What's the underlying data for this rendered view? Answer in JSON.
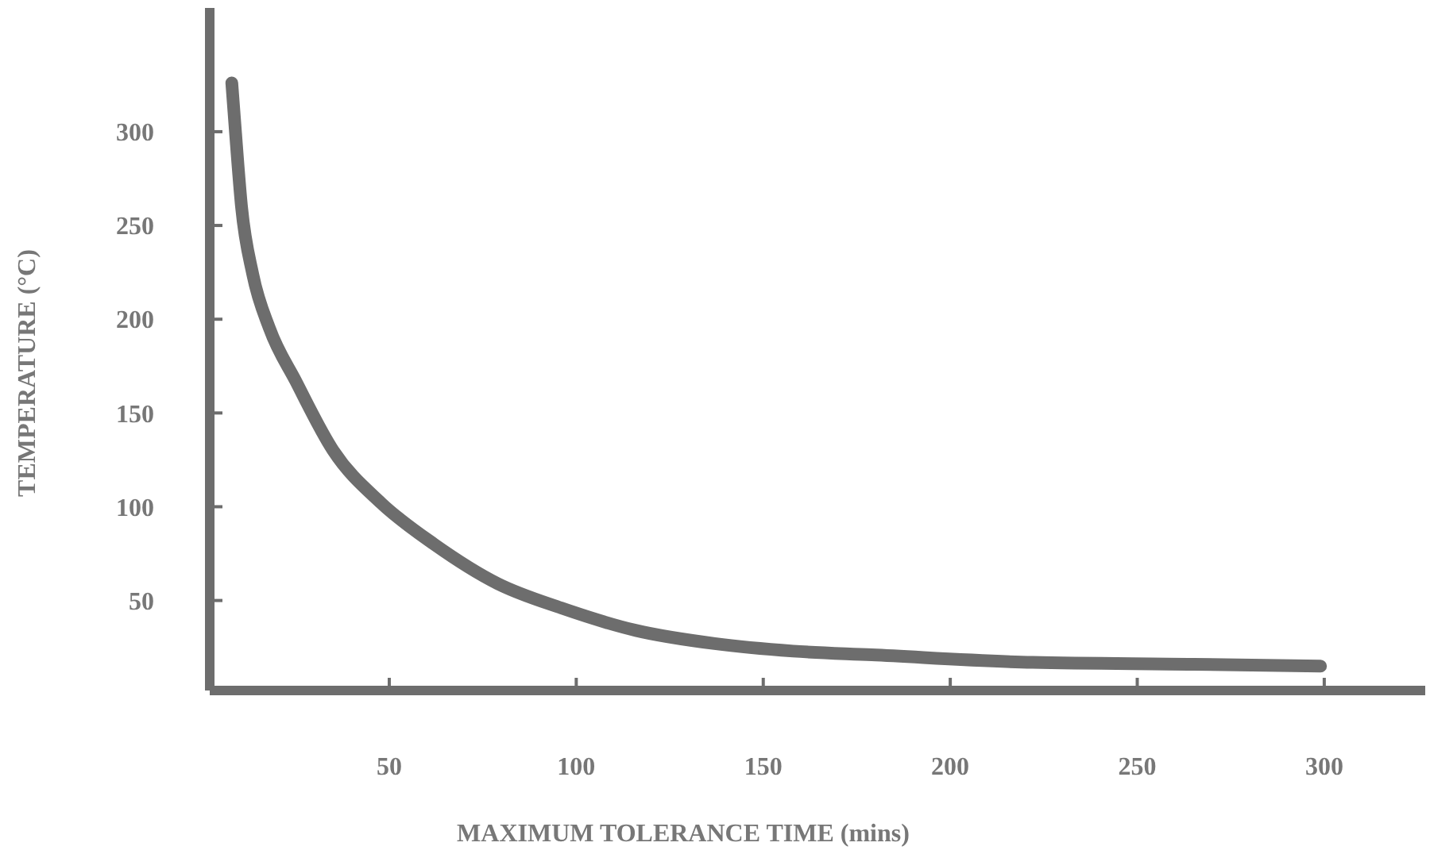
{
  "chart_data": {
    "type": "line",
    "xlabel": "MAXIMUM TOLERANCE TIME (mins)",
    "ylabel": "TEMPERATURE (°C)",
    "xlim": [
      2,
      327
    ],
    "ylim": [
      2,
      366
    ],
    "xticks": [
      50,
      100,
      150,
      200,
      250,
      300
    ],
    "yticks": [
      50,
      100,
      150,
      200,
      250,
      300
    ],
    "grid": false,
    "series": [
      {
        "color": "#6d6d6d",
        "x": [
          7.9,
          8.8,
          10.5,
          13.5,
          18,
          25,
          35,
          47.8,
          62,
          79,
          96,
          116,
          137,
          158,
          179,
          222,
          265,
          299
        ],
        "values": [
          326,
          302,
          260,
          224,
          195,
          167,
          130,
          102,
          80,
          59,
          46,
          34,
          27,
          23,
          21,
          17,
          16,
          15
        ]
      }
    ]
  }
}
